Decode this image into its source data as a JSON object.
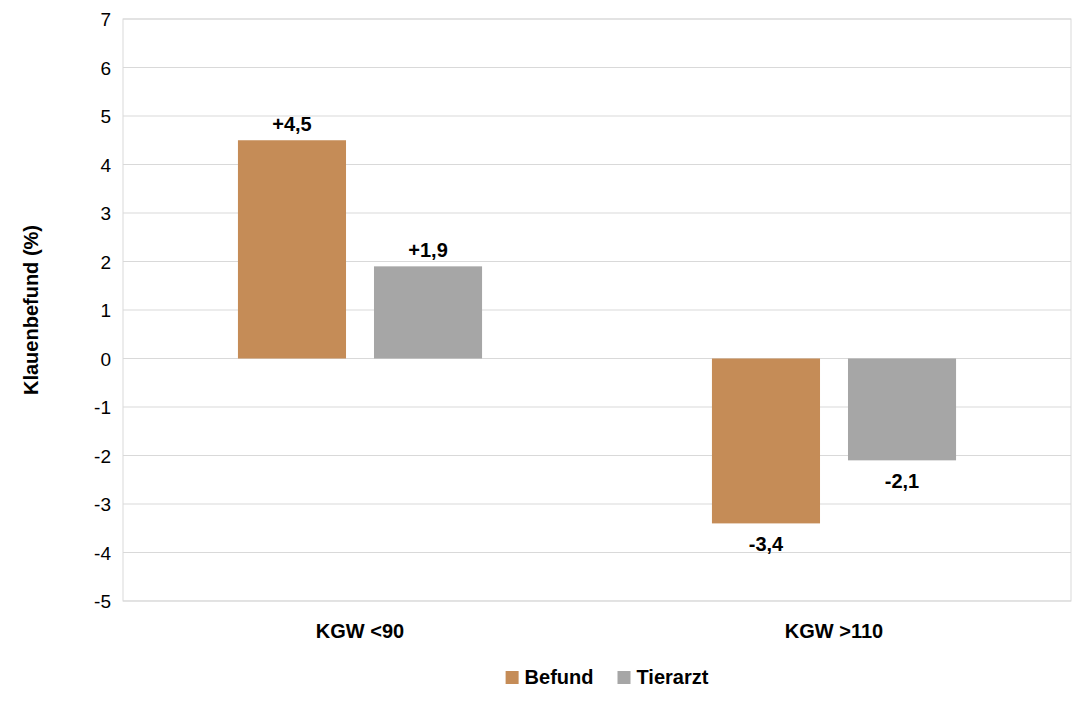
{
  "chart_data": {
    "type": "bar",
    "y_label": "Klauenbefund (%)",
    "categories": [
      "KGW <90",
      "KGW >110"
    ],
    "series": [
      {
        "name": "Befund",
        "color": "#c58c57",
        "values": [
          4.5,
          -3.4
        ],
        "value_labels": [
          "+4,5",
          "-3,4"
        ]
      },
      {
        "name": "Tierarzt",
        "color": "#a6a6a6",
        "values": [
          1.9,
          -2.1
        ],
        "value_labels": [
          "+1,9",
          "-2,1"
        ]
      }
    ],
    "ylim": [
      -5,
      7
    ],
    "yticks": [
      -5,
      -4,
      -3,
      -2,
      -1,
      0,
      1,
      2,
      3,
      4,
      5,
      6,
      7
    ],
    "grid": true,
    "legend": "bottom",
    "data_labels": true
  }
}
